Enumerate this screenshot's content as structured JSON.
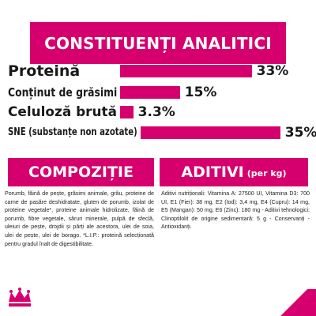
{
  "header": {
    "title": "CONSTITUENȚI ANALITICI"
  },
  "chart_data": {
    "type": "bar",
    "orientation": "horizontal",
    "categories": [
      "Proteină",
      "Conținut de grăsimi",
      "Celuloză brută",
      "SNE (substanțe non azotate)"
    ],
    "values": [
      33,
      15,
      3.3,
      35
    ],
    "value_labels": [
      "33%",
      "15%",
      "3.3%",
      "35%"
    ],
    "title": "",
    "xlabel": "",
    "ylabel": "",
    "color": "#d5006d"
  },
  "composition": {
    "title": "COMPOZIȚIE",
    "text": "Porumb, făină de pește, grăsimi animale, grâu, proteine de carne de pasăre deshidratate, gluten de porumb, izolat de proteine vegetale*, proteine animale hidrolizate, făină de porumb, fibre vegetale, săruri minerale, pulpă de sfeclă, uleiuri de pește, drojdii și părți ale acestora, ulei de soia, ulei de pește, ulei de borago. *L.I.P.: proteină selecționată pentru gradul înalt de digestibilitate."
  },
  "additives": {
    "title": "ADITIVI",
    "subtitle": "(per kg)",
    "text": "Aditivi nutriționali: Vitamina A: 27500 UI, Vitamina D3: 700 UI, E1 (Fier): 38 mg, E2 (Iod): 3,4 mg, E4 (Cupru): 14 mg, E5 (Mangan): 50 mg, E6 (Zinc): 180 mg - Aditivi tehnologici: Clinoptilolit de origine sedimentară: 5 g - Conservanți - Antioxidanți."
  },
  "brand": {
    "logo_icon": "royal-canin-crown-icon",
    "accent": "#d5006d"
  }
}
